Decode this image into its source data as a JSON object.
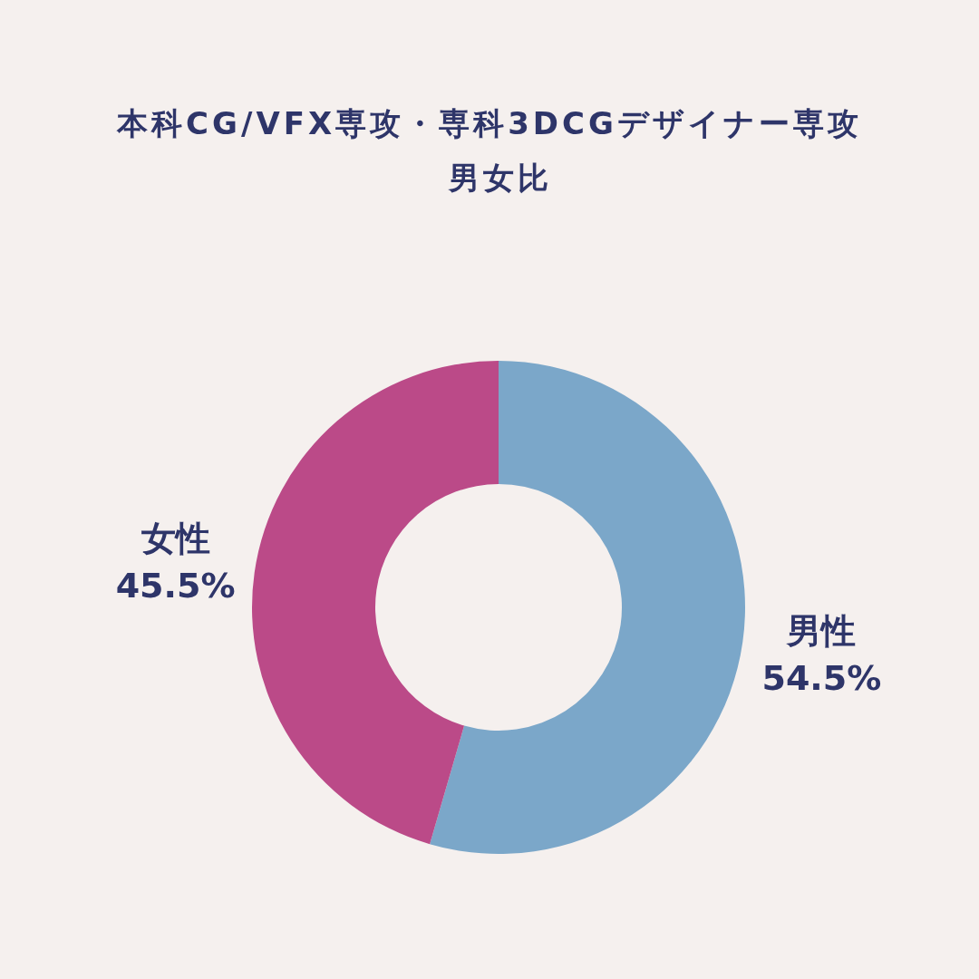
{
  "chart_data": {
    "type": "donut",
    "title": "本科CG/VFX専攻・専科3DCGデザイナー専攻",
    "subtitle": "男女比",
    "categories": [
      "男性",
      "女性"
    ],
    "values": [
      54.5,
      45.5
    ],
    "colors": [
      "#7ba7c9",
      "#bb4a88"
    ],
    "value_labels": [
      "54.5%",
      "45.5%"
    ]
  }
}
